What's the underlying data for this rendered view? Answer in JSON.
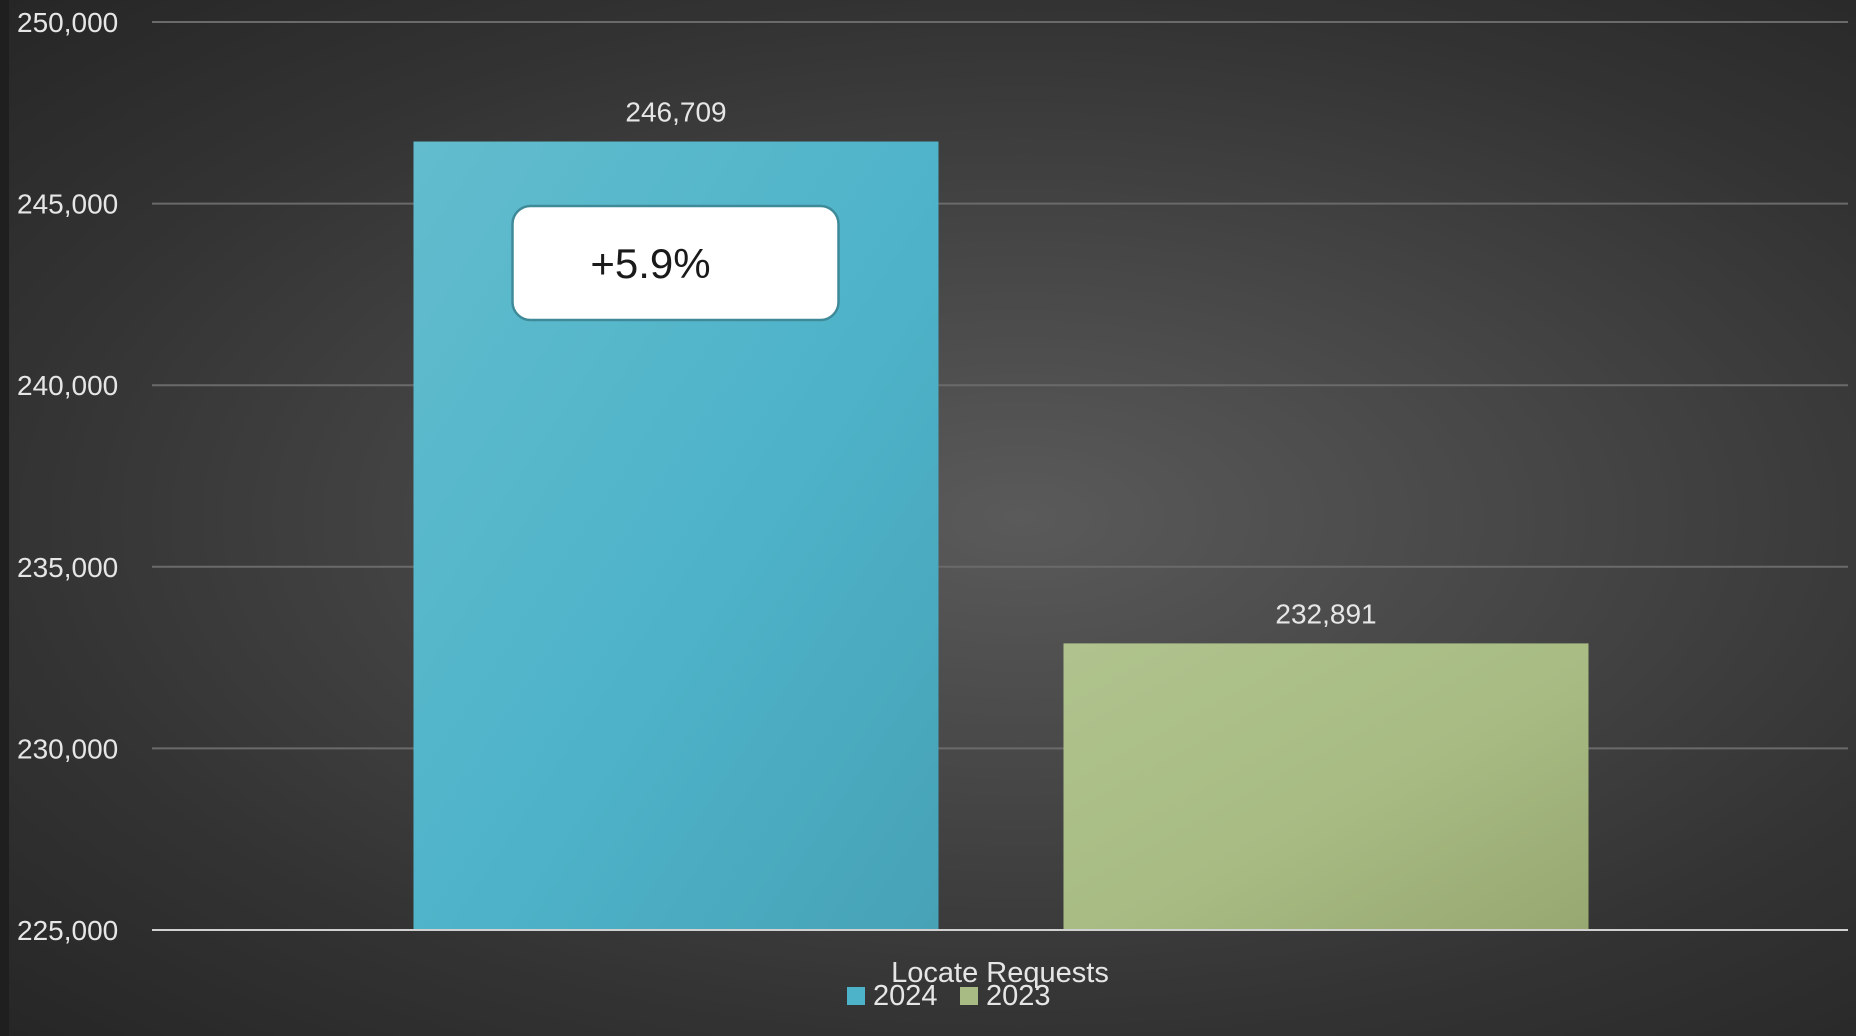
{
  "chart_data": {
    "type": "bar",
    "categories": [
      "Locate Requests"
    ],
    "series": [
      {
        "name": "2024",
        "values": [
          246709
        ],
        "color": "#4db3c8"
      },
      {
        "name": "2023",
        "values": [
          232891
        ],
        "color": "#a8bb84"
      }
    ],
    "data_labels": [
      "246,709",
      "232,891"
    ],
    "ylim": [
      225000,
      250000
    ],
    "yticks": [
      225000,
      230000,
      235000,
      240000,
      245000,
      250000
    ],
    "ytick_labels": [
      "225,000",
      "230,000",
      "235,000",
      "240,000",
      "245,000",
      "250,000"
    ],
    "grid": true,
    "legend_position": "bottom",
    "annotation": "+5.9%",
    "title": "",
    "xlabel": "",
    "ylabel": ""
  }
}
